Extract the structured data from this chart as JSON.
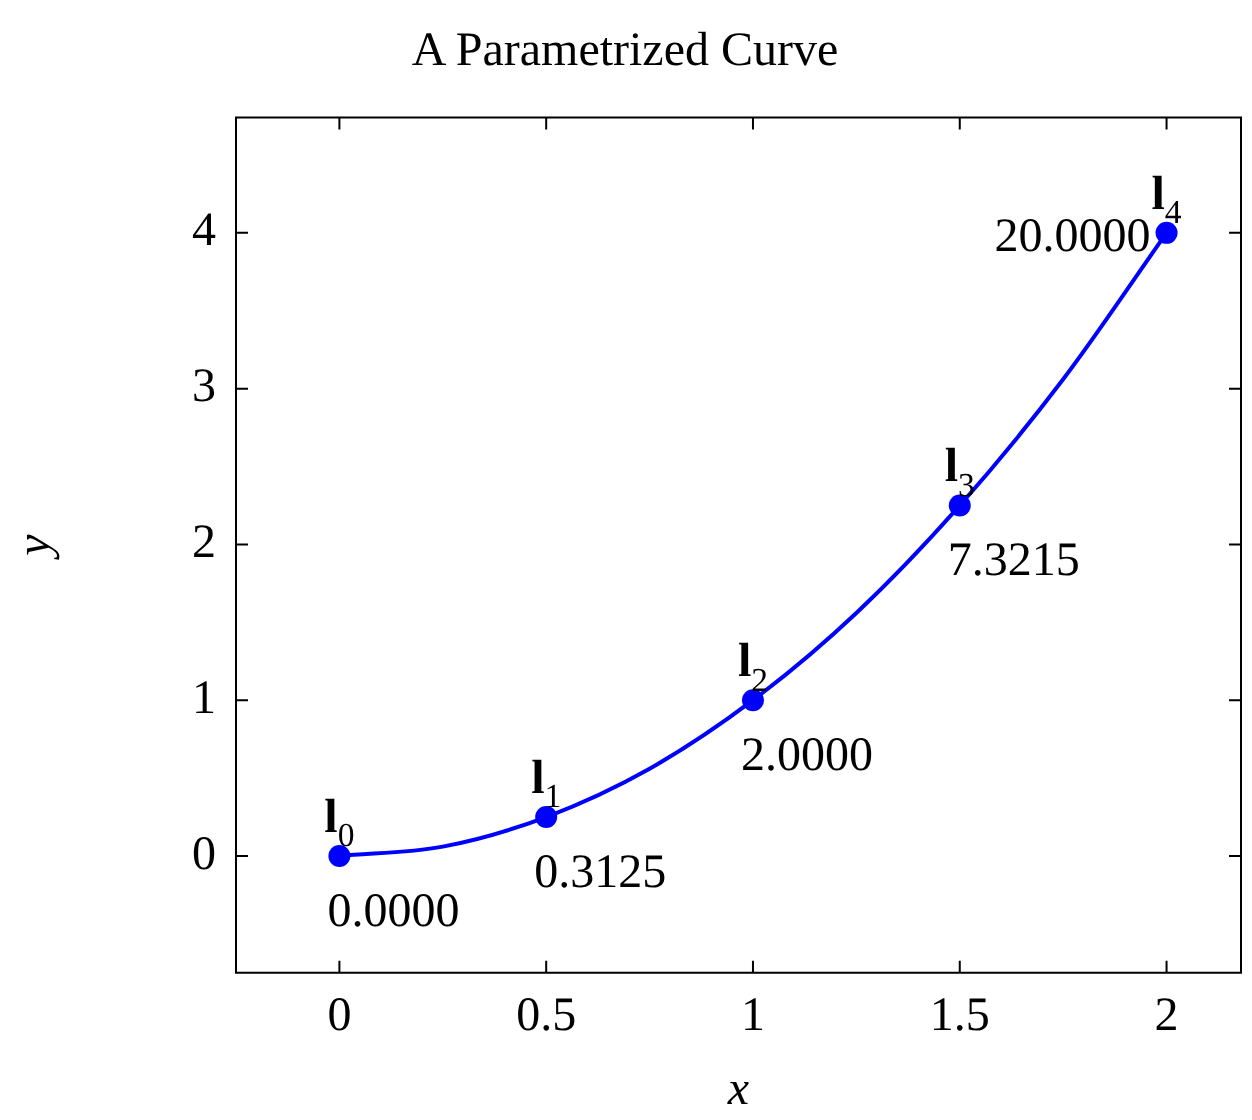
{
  "chart_data": {
    "type": "line",
    "title": "A Parametrized Curve",
    "xlabel": "x",
    "ylabel": "y",
    "xlim": [
      -0.25,
      2.18
    ],
    "ylim": [
      -0.75,
      4.74
    ],
    "xticks": [
      0,
      0.5,
      1,
      1.5,
      2
    ],
    "yticks": [
      0,
      1,
      2,
      3,
      4
    ],
    "grid": false,
    "legend": false,
    "line_style": "solid",
    "series": [
      {
        "color": "#0000ff",
        "marker": "none",
        "x": [
          0,
          0.25,
          0.5,
          0.75,
          1,
          1.25,
          1.5,
          1.75,
          2
        ],
        "values": [
          0,
          0.06,
          0.25,
          0.56,
          1,
          1.56,
          2.25,
          3.06,
          4
        ]
      },
      {
        "type": "scatter",
        "color": "#0000ff",
        "marker": "circle",
        "x": [
          0,
          0.5,
          1,
          1.5,
          2
        ],
        "values": [
          0,
          0.25,
          1,
          2.25,
          4
        ]
      }
    ],
    "annotations": [
      {
        "text": "l$_{0}$",
        "x": 0,
        "y": 0
      },
      {
        "text": "0.0000",
        "x": 0,
        "y": 0
      },
      {
        "text": "l$_{1}$",
        "x": 0.5,
        "y": 0.25
      },
      {
        "text": "0.3125",
        "x": 0.5,
        "y": 0.25
      },
      {
        "text": "l$_{2}$",
        "x": 1,
        "y": 1
      },
      {
        "text": "2.0000",
        "x": 1,
        "y": 1
      },
      {
        "text": "l$_{3}$",
        "x": 1.5,
        "y": 2.25
      },
      {
        "text": "7.3215",
        "x": 1.5,
        "y": 2.25
      },
      {
        "text": "l$_{4}$",
        "x": 2,
        "y": 4
      },
      {
        "text": "20.0000",
        "x": 2,
        "y": 4
      }
    ]
  }
}
